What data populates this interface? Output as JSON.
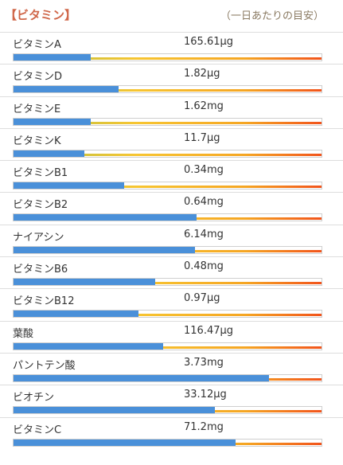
{
  "header": {
    "title": "【ビタミン】",
    "note": "（一日あたりの目安）"
  },
  "rows": [
    {
      "name": "ビタミンA",
      "amount": "165.61μg",
      "level": 0.25
    },
    {
      "name": "ビタミンD",
      "amount": "1.82μg",
      "level": 0.34
    },
    {
      "name": "ビタミンE",
      "amount": "1.62mg",
      "level": 0.25
    },
    {
      "name": "ビタミンK",
      "amount": "11.7μg",
      "level": 0.23
    },
    {
      "name": "ビタミンB1",
      "amount": "0.34mg",
      "level": 0.36
    },
    {
      "name": "ビタミンB2",
      "amount": "0.64mg",
      "level": 0.595
    },
    {
      "name": "ナイアシン",
      "amount": "6.14mg",
      "level": 0.59
    },
    {
      "name": "ビタミンB6",
      "amount": "0.48mg",
      "level": 0.46
    },
    {
      "name": "ビタミンB12",
      "amount": "0.97μg",
      "level": 0.405
    },
    {
      "name": "葉酸",
      "amount": "116.47μg",
      "level": 0.485
    },
    {
      "name": "パントテン酸",
      "amount": "3.73mg",
      "level": 0.83
    },
    {
      "name": "ビオチン",
      "amount": "33.12μg",
      "level": 0.655
    },
    {
      "name": "ビタミンC",
      "amount": "71.2mg",
      "level": 0.72
    }
  ],
  "colors": {
    "fill": "#4a90d9",
    "title": "#d0674a",
    "scale_start": "#a8c34a",
    "scale_mid": "#f7c531",
    "scale_end": "#f2541b"
  }
}
